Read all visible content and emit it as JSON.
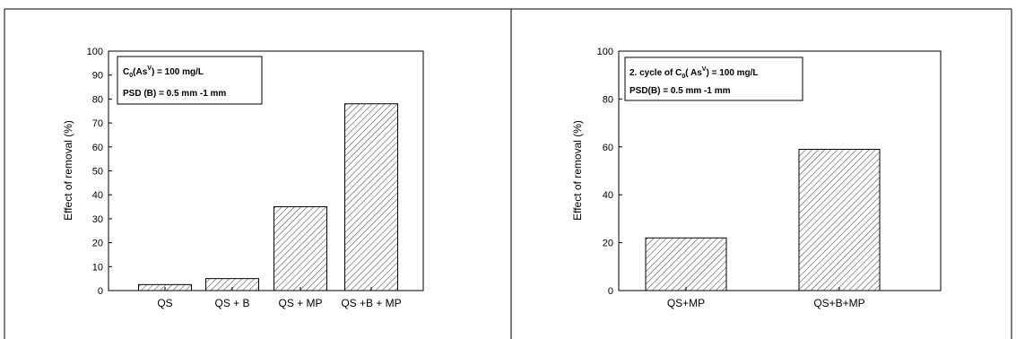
{
  "chart_data": [
    {
      "type": "bar",
      "categories": [
        "QS",
        "QS + B",
        "QS + MP",
        "QS +B + MP"
      ],
      "values": [
        2.5,
        5,
        35,
        78
      ],
      "ylabel": "Effect of removal (%)",
      "xlabel": "",
      "ylim": [
        0,
        100
      ],
      "yticks": [
        "0",
        "10",
        "20",
        "30",
        "40",
        "50",
        "60",
        "70",
        "80",
        "90",
        "100"
      ],
      "legend": {
        "line1": "C0(AsV) = 100 mg/L",
        "line2": "PSD (B) = 0.5 mm -1 mm"
      },
      "legend_position": "top-left",
      "grid": false,
      "bar_fill": "hatched"
    },
    {
      "type": "bar",
      "categories": [
        "QS+MP",
        "QS+B+MP"
      ],
      "values": [
        22,
        59
      ],
      "ylabel": "Effect of removal (%)",
      "xlabel": "",
      "ylim": [
        0,
        100
      ],
      "yticks": [
        "0",
        "20",
        "40",
        "60",
        "80",
        "100"
      ],
      "legend": {
        "line1": "2. cycle of C0( AsV) = 100 mg/L",
        "line2": "PSD(B) = 0.5 mm -1 mm"
      },
      "legend_position": "top-left",
      "grid": false,
      "bar_fill": "hatched"
    }
  ]
}
